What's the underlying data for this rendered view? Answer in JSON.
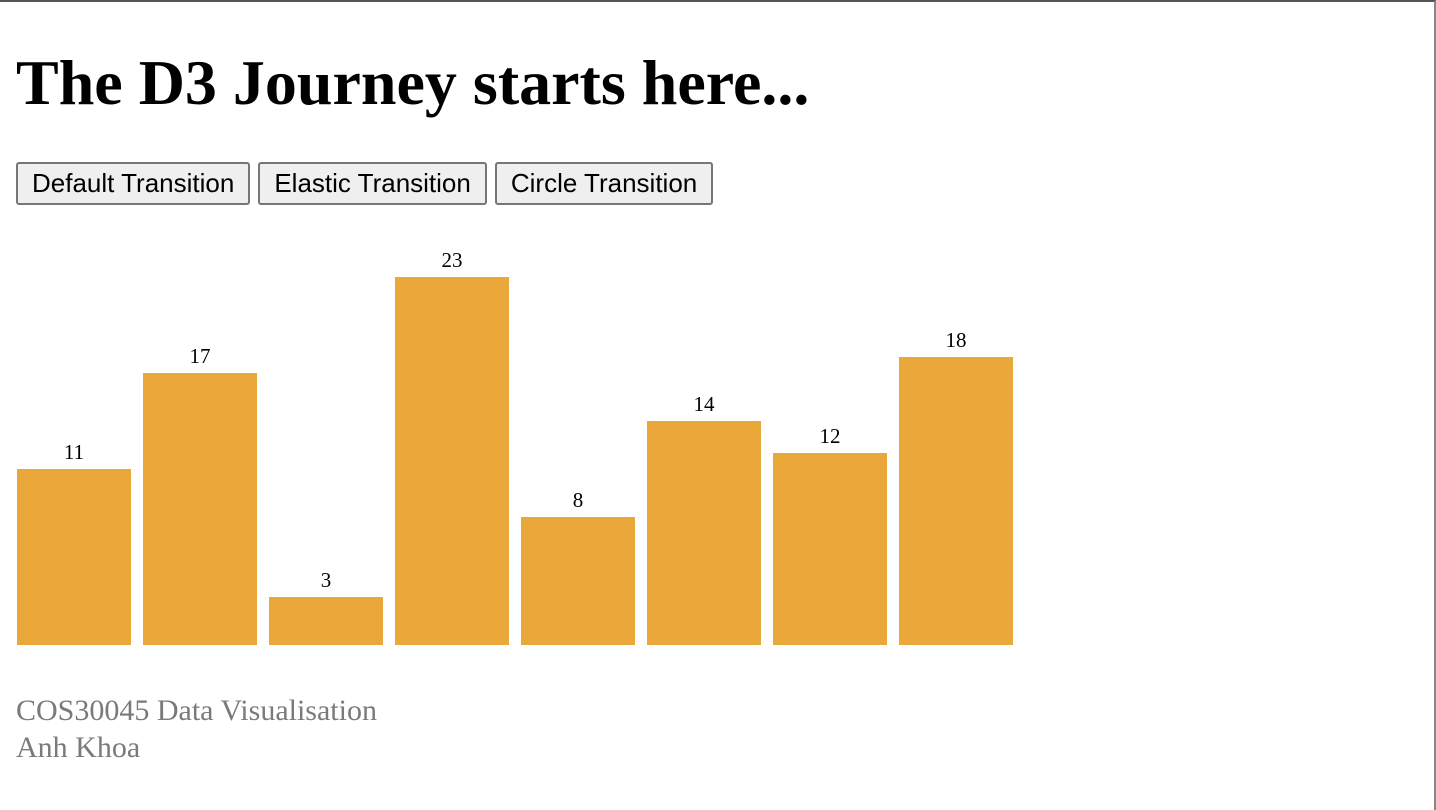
{
  "page": {
    "title": "The D3 Journey starts here..."
  },
  "buttons": {
    "default": "Default Transition",
    "elastic": "Elastic Transition",
    "circle": "Circle Transition"
  },
  "footer": {
    "course": "COS30045 Data Visualisation",
    "author": "Anh Khoa"
  },
  "colors": {
    "bar": "#eaa83a"
  },
  "chart_data": {
    "type": "bar",
    "values": [
      11,
      17,
      3,
      23,
      8,
      14,
      12,
      18
    ],
    "data_labels": [
      "11",
      "17",
      "3",
      "23",
      "8",
      "14",
      "12",
      "18"
    ],
    "title": "",
    "xlabel": "",
    "ylabel": "",
    "grid": false,
    "axes": false
  }
}
